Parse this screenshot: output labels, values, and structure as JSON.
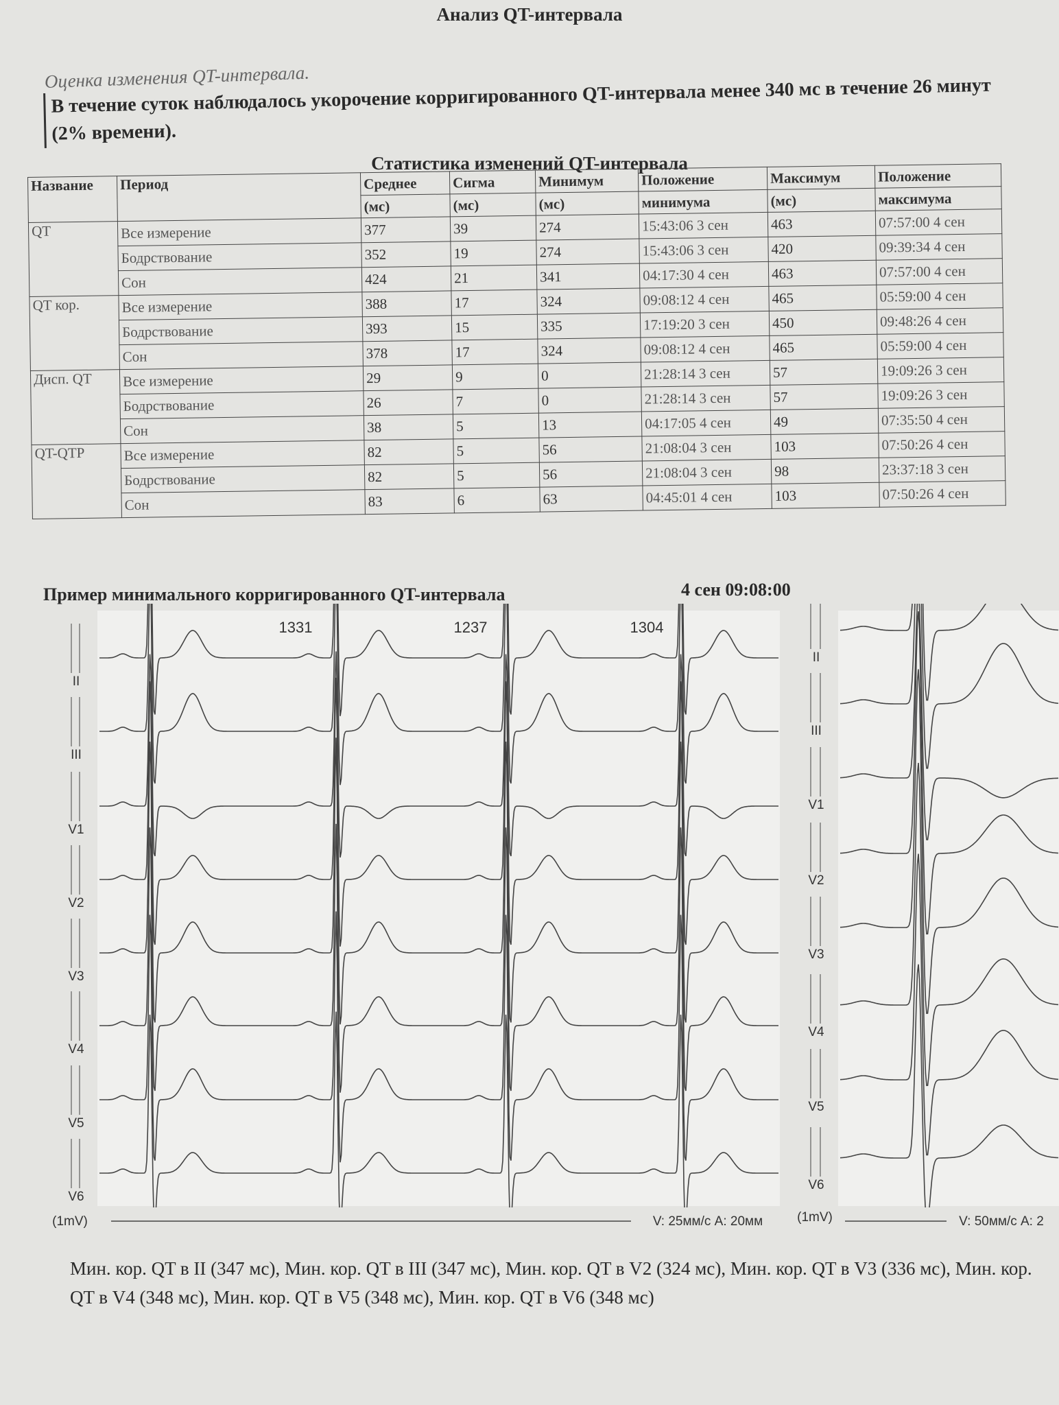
{
  "header": {
    "title": "Анализ QT-интервала"
  },
  "note": "Оценка изменения QT-интервала.",
  "paragraph": "В течение суток наблюдалось укорочение корригированного QT-интервала менее 340 мс в течение 26 минут (2% времени).",
  "table": {
    "title": "Статистика изменений QT-интервала",
    "headers": [
      [
        "Название"
      ],
      [
        "Период"
      ],
      [
        "Среднее",
        "(мс)"
      ],
      [
        "Сигма",
        "(мс)"
      ],
      [
        "Минимум",
        "(мс)"
      ],
      [
        "Положение",
        "минимума"
      ],
      [
        "Максимум",
        "(мс)"
      ],
      [
        "Положение",
        "максимума"
      ]
    ],
    "groups": [
      {
        "name": "QT",
        "rows": [
          [
            "Все измерение",
            377,
            39,
            274,
            "15:43:06 3 сен",
            463,
            "07:57:00 4 сен"
          ],
          [
            "Бодрствование",
            352,
            19,
            274,
            "15:43:06 3 сен",
            420,
            "09:39:34 4 сен"
          ],
          [
            "Сон",
            424,
            21,
            341,
            "04:17:30 4 сен",
            463,
            "07:57:00 4 сен"
          ]
        ]
      },
      {
        "name": "QT кор.",
        "rows": [
          [
            "Все измерение",
            388,
            17,
            324,
            "09:08:12 4 сен",
            465,
            "05:59:00 4 сен"
          ],
          [
            "Бодрствование",
            393,
            15,
            335,
            "17:19:20 3 сен",
            450,
            "09:48:26 4 сен"
          ],
          [
            "Сон",
            378,
            17,
            324,
            "09:08:12 4 сен",
            465,
            "05:59:00 4 сен"
          ]
        ]
      },
      {
        "name": "Дисп. QT",
        "rows": [
          [
            "Все измерение",
            29,
            9,
            0,
            "21:28:14 3 сен",
            57,
            "19:09:26 3 сен"
          ],
          [
            "Бодрствование",
            26,
            7,
            0,
            "21:28:14 3 сен",
            57,
            "19:09:26 3 сен"
          ],
          [
            "Сон",
            38,
            5,
            13,
            "04:17:05 4 сен",
            49,
            "07:35:50 4 сен"
          ]
        ]
      },
      {
        "name": "QT-QTP",
        "rows": [
          [
            "Все измерение",
            82,
            5,
            56,
            "21:08:04 3 сен",
            103,
            "07:50:26 4 сен"
          ],
          [
            "Бодрствование",
            82,
            5,
            56,
            "21:08:04 3 сен",
            98,
            "23:37:18 3 сен"
          ],
          [
            "Сон",
            83,
            6,
            63,
            "04:45:01 4 сен",
            103,
            "07:50:26 4 сен"
          ]
        ]
      }
    ]
  },
  "ecg": {
    "title": "Пример минимального корригированного QT-интервала",
    "timestamp": "4 сен 09:08:00",
    "rr_intervals": [
      "1331",
      "1237",
      "1304"
    ],
    "left_leads": [
      "II",
      "III",
      "V1",
      "V2",
      "V3",
      "V4",
      "V5",
      "V6"
    ],
    "right_leads": [
      "II",
      "III",
      "V1",
      "V2",
      "V3",
      "V4",
      "V5",
      "V6"
    ],
    "left_scale_unit": "(1mV)",
    "left_speed": "V: 25мм/с  A: 20мм",
    "right_scale_unit": "(1mV)",
    "right_speed": "V: 50мм/с  A: 2"
  },
  "footer": "Мин. кор. QT в II (347 мс), Мин. кор. QT в III (347 мс), Мин. кор. QT в V2 (324 мс), Мин. кор. QT в V3 (336 мс), Мин. кор. QT в V4 (348 мс), Мин. кор. QT в V5 (348 мс), Мин. кор. QT в V6 (348 мс)"
}
